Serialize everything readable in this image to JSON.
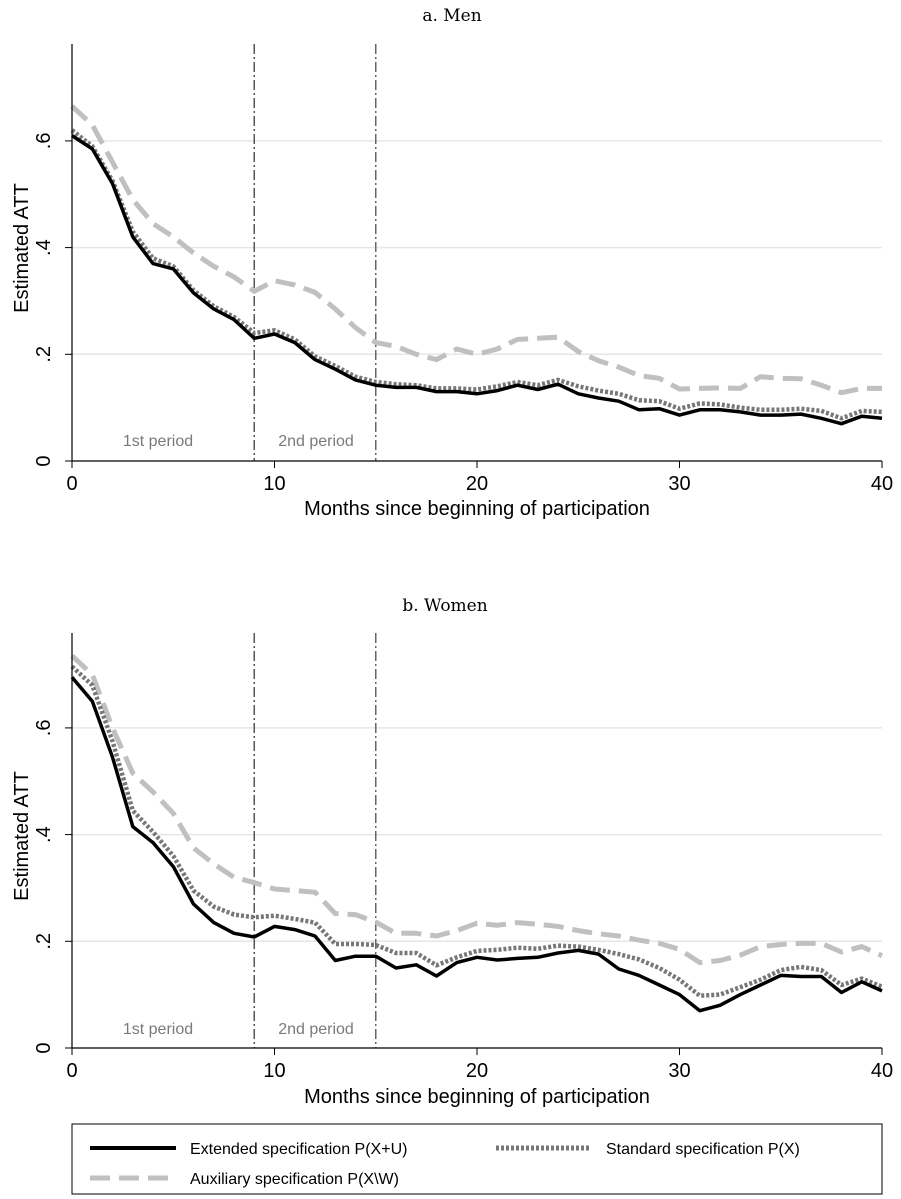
{
  "chart_data": [
    {
      "type": "line",
      "title": "a. Men",
      "xlabel": "Months since beginning of participation",
      "ylabel": "Estimated ATT",
      "xlim": [
        0,
        40
      ],
      "ylim": [
        0,
        0.75
      ],
      "x_ticks": [
        "0",
        "10",
        "20",
        "30",
        "40"
      ],
      "y_ticks": [
        "0",
        ".2",
        ".4",
        ".6"
      ],
      "grid": "horizontal",
      "vlines": [
        9,
        15
      ],
      "period_labels": [
        "1st period",
        "2nd period"
      ],
      "x": [
        0,
        1,
        2,
        3,
        4,
        5,
        6,
        7,
        8,
        9,
        10,
        11,
        12,
        13,
        14,
        15,
        16,
        17,
        18,
        19,
        20,
        21,
        22,
        23,
        24,
        25,
        26,
        27,
        28,
        29,
        30,
        31,
        32,
        33,
        34,
        35,
        36,
        37,
        38,
        39,
        40
      ],
      "series": [
        {
          "name": "Extended specification P(X+U)",
          "values": [
            0.61,
            0.585,
            0.52,
            0.42,
            0.37,
            0.36,
            0.315,
            0.285,
            0.265,
            0.23,
            0.238,
            0.222,
            0.19,
            0.172,
            0.152,
            0.142,
            0.138,
            0.138,
            0.13,
            0.13,
            0.126,
            0.132,
            0.142,
            0.134,
            0.144,
            0.126,
            0.118,
            0.112,
            0.096,
            0.098,
            0.086,
            0.096,
            0.096,
            0.092,
            0.086,
            0.086,
            0.088,
            0.08,
            0.07,
            0.084,
            0.08
          ]
        },
        {
          "name": "Standard specification P(X)",
          "values": [
            0.62,
            0.59,
            0.525,
            0.43,
            0.38,
            0.365,
            0.32,
            0.29,
            0.27,
            0.24,
            0.245,
            0.228,
            0.196,
            0.178,
            0.158,
            0.148,
            0.144,
            0.142,
            0.136,
            0.136,
            0.134,
            0.14,
            0.148,
            0.142,
            0.152,
            0.14,
            0.132,
            0.126,
            0.114,
            0.112,
            0.098,
            0.108,
            0.106,
            0.1,
            0.096,
            0.096,
            0.098,
            0.094,
            0.08,
            0.094,
            0.092
          ]
        },
        {
          "name": "Auxiliary specification P(X\\W)",
          "values": [
            0.665,
            0.63,
            0.56,
            0.49,
            0.445,
            0.42,
            0.39,
            0.365,
            0.345,
            0.318,
            0.338,
            0.33,
            0.316,
            0.285,
            0.25,
            0.222,
            0.215,
            0.2,
            0.19,
            0.21,
            0.2,
            0.21,
            0.228,
            0.23,
            0.232,
            0.205,
            0.188,
            0.176,
            0.16,
            0.155,
            0.135,
            0.136,
            0.137,
            0.136,
            0.158,
            0.155,
            0.154,
            0.142,
            0.128,
            0.136,
            0.136
          ]
        }
      ]
    },
    {
      "type": "line",
      "title": "b. Women",
      "xlabel": "Months since beginning of participation",
      "ylabel": "Estimated ATT",
      "xlim": [
        0,
        40
      ],
      "ylim": [
        0,
        0.75
      ],
      "x_ticks": [
        "0",
        "10",
        "20",
        "30",
        "40"
      ],
      "y_ticks": [
        "0",
        ".2",
        ".4",
        ".6"
      ],
      "grid": "horizontal",
      "vlines": [
        9,
        15
      ],
      "period_labels": [
        "1st period",
        "2nd period"
      ],
      "x": [
        0,
        1,
        2,
        3,
        4,
        5,
        6,
        7,
        8,
        9,
        10,
        11,
        12,
        13,
        14,
        15,
        16,
        17,
        18,
        19,
        20,
        21,
        22,
        23,
        24,
        25,
        26,
        27,
        28,
        29,
        30,
        31,
        32,
        33,
        34,
        35,
        36,
        37,
        38,
        39,
        40
      ],
      "series": [
        {
          "name": "Extended specification P(X+U)",
          "values": [
            0.695,
            0.65,
            0.545,
            0.415,
            0.385,
            0.34,
            0.27,
            0.235,
            0.215,
            0.208,
            0.228,
            0.222,
            0.21,
            0.164,
            0.172,
            0.172,
            0.15,
            0.156,
            0.135,
            0.16,
            0.17,
            0.165,
            0.168,
            0.17,
            0.178,
            0.183,
            0.176,
            0.148,
            0.136,
            0.118,
            0.1,
            0.07,
            0.08,
            0.1,
            0.118,
            0.136,
            0.134,
            0.134,
            0.104,
            0.124,
            0.107
          ]
        },
        {
          "name": "Standard specification P(X)",
          "values": [
            0.715,
            0.68,
            0.575,
            0.445,
            0.405,
            0.36,
            0.295,
            0.265,
            0.25,
            0.245,
            0.248,
            0.242,
            0.235,
            0.195,
            0.195,
            0.193,
            0.178,
            0.178,
            0.155,
            0.17,
            0.182,
            0.184,
            0.188,
            0.186,
            0.192,
            0.19,
            0.184,
            0.176,
            0.166,
            0.15,
            0.128,
            0.098,
            0.1,
            0.114,
            0.128,
            0.146,
            0.152,
            0.146,
            0.118,
            0.13,
            0.115
          ]
        },
        {
          "name": "Auxiliary specification P(X\\W)",
          "values": [
            0.735,
            0.7,
            0.6,
            0.515,
            0.48,
            0.44,
            0.375,
            0.345,
            0.32,
            0.31,
            0.298,
            0.295,
            0.292,
            0.252,
            0.25,
            0.236,
            0.215,
            0.215,
            0.21,
            0.22,
            0.234,
            0.23,
            0.235,
            0.232,
            0.228,
            0.22,
            0.214,
            0.21,
            0.202,
            0.196,
            0.185,
            0.16,
            0.164,
            0.174,
            0.19,
            0.194,
            0.196,
            0.196,
            0.18,
            0.19,
            0.173
          ]
        }
      ]
    }
  ],
  "legend": {
    "placement": "bottom",
    "items": [
      {
        "label": "Extended specification P(X+U)",
        "color": "#000000",
        "style": "solid"
      },
      {
        "label": "Standard specification P(X)",
        "color": "#777777",
        "style": "dotted"
      },
      {
        "label": "Auxiliary specification P(X\\W)",
        "color": "#c0c0c0",
        "style": "dashed"
      }
    ]
  }
}
